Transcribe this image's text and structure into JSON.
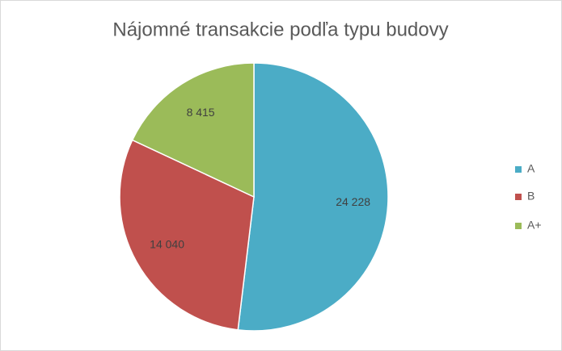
{
  "chart_data": {
    "type": "pie",
    "title": "Nájomné transakcie podľa typu budovy",
    "categories": [
      "A",
      "B",
      "A+"
    ],
    "values": [
      24228,
      14040,
      8415
    ],
    "value_labels": [
      "24 228",
      "14 040",
      "8 415"
    ],
    "colors": [
      "#4bacc6",
      "#c0504d",
      "#9bbb59"
    ],
    "legend": "right"
  }
}
